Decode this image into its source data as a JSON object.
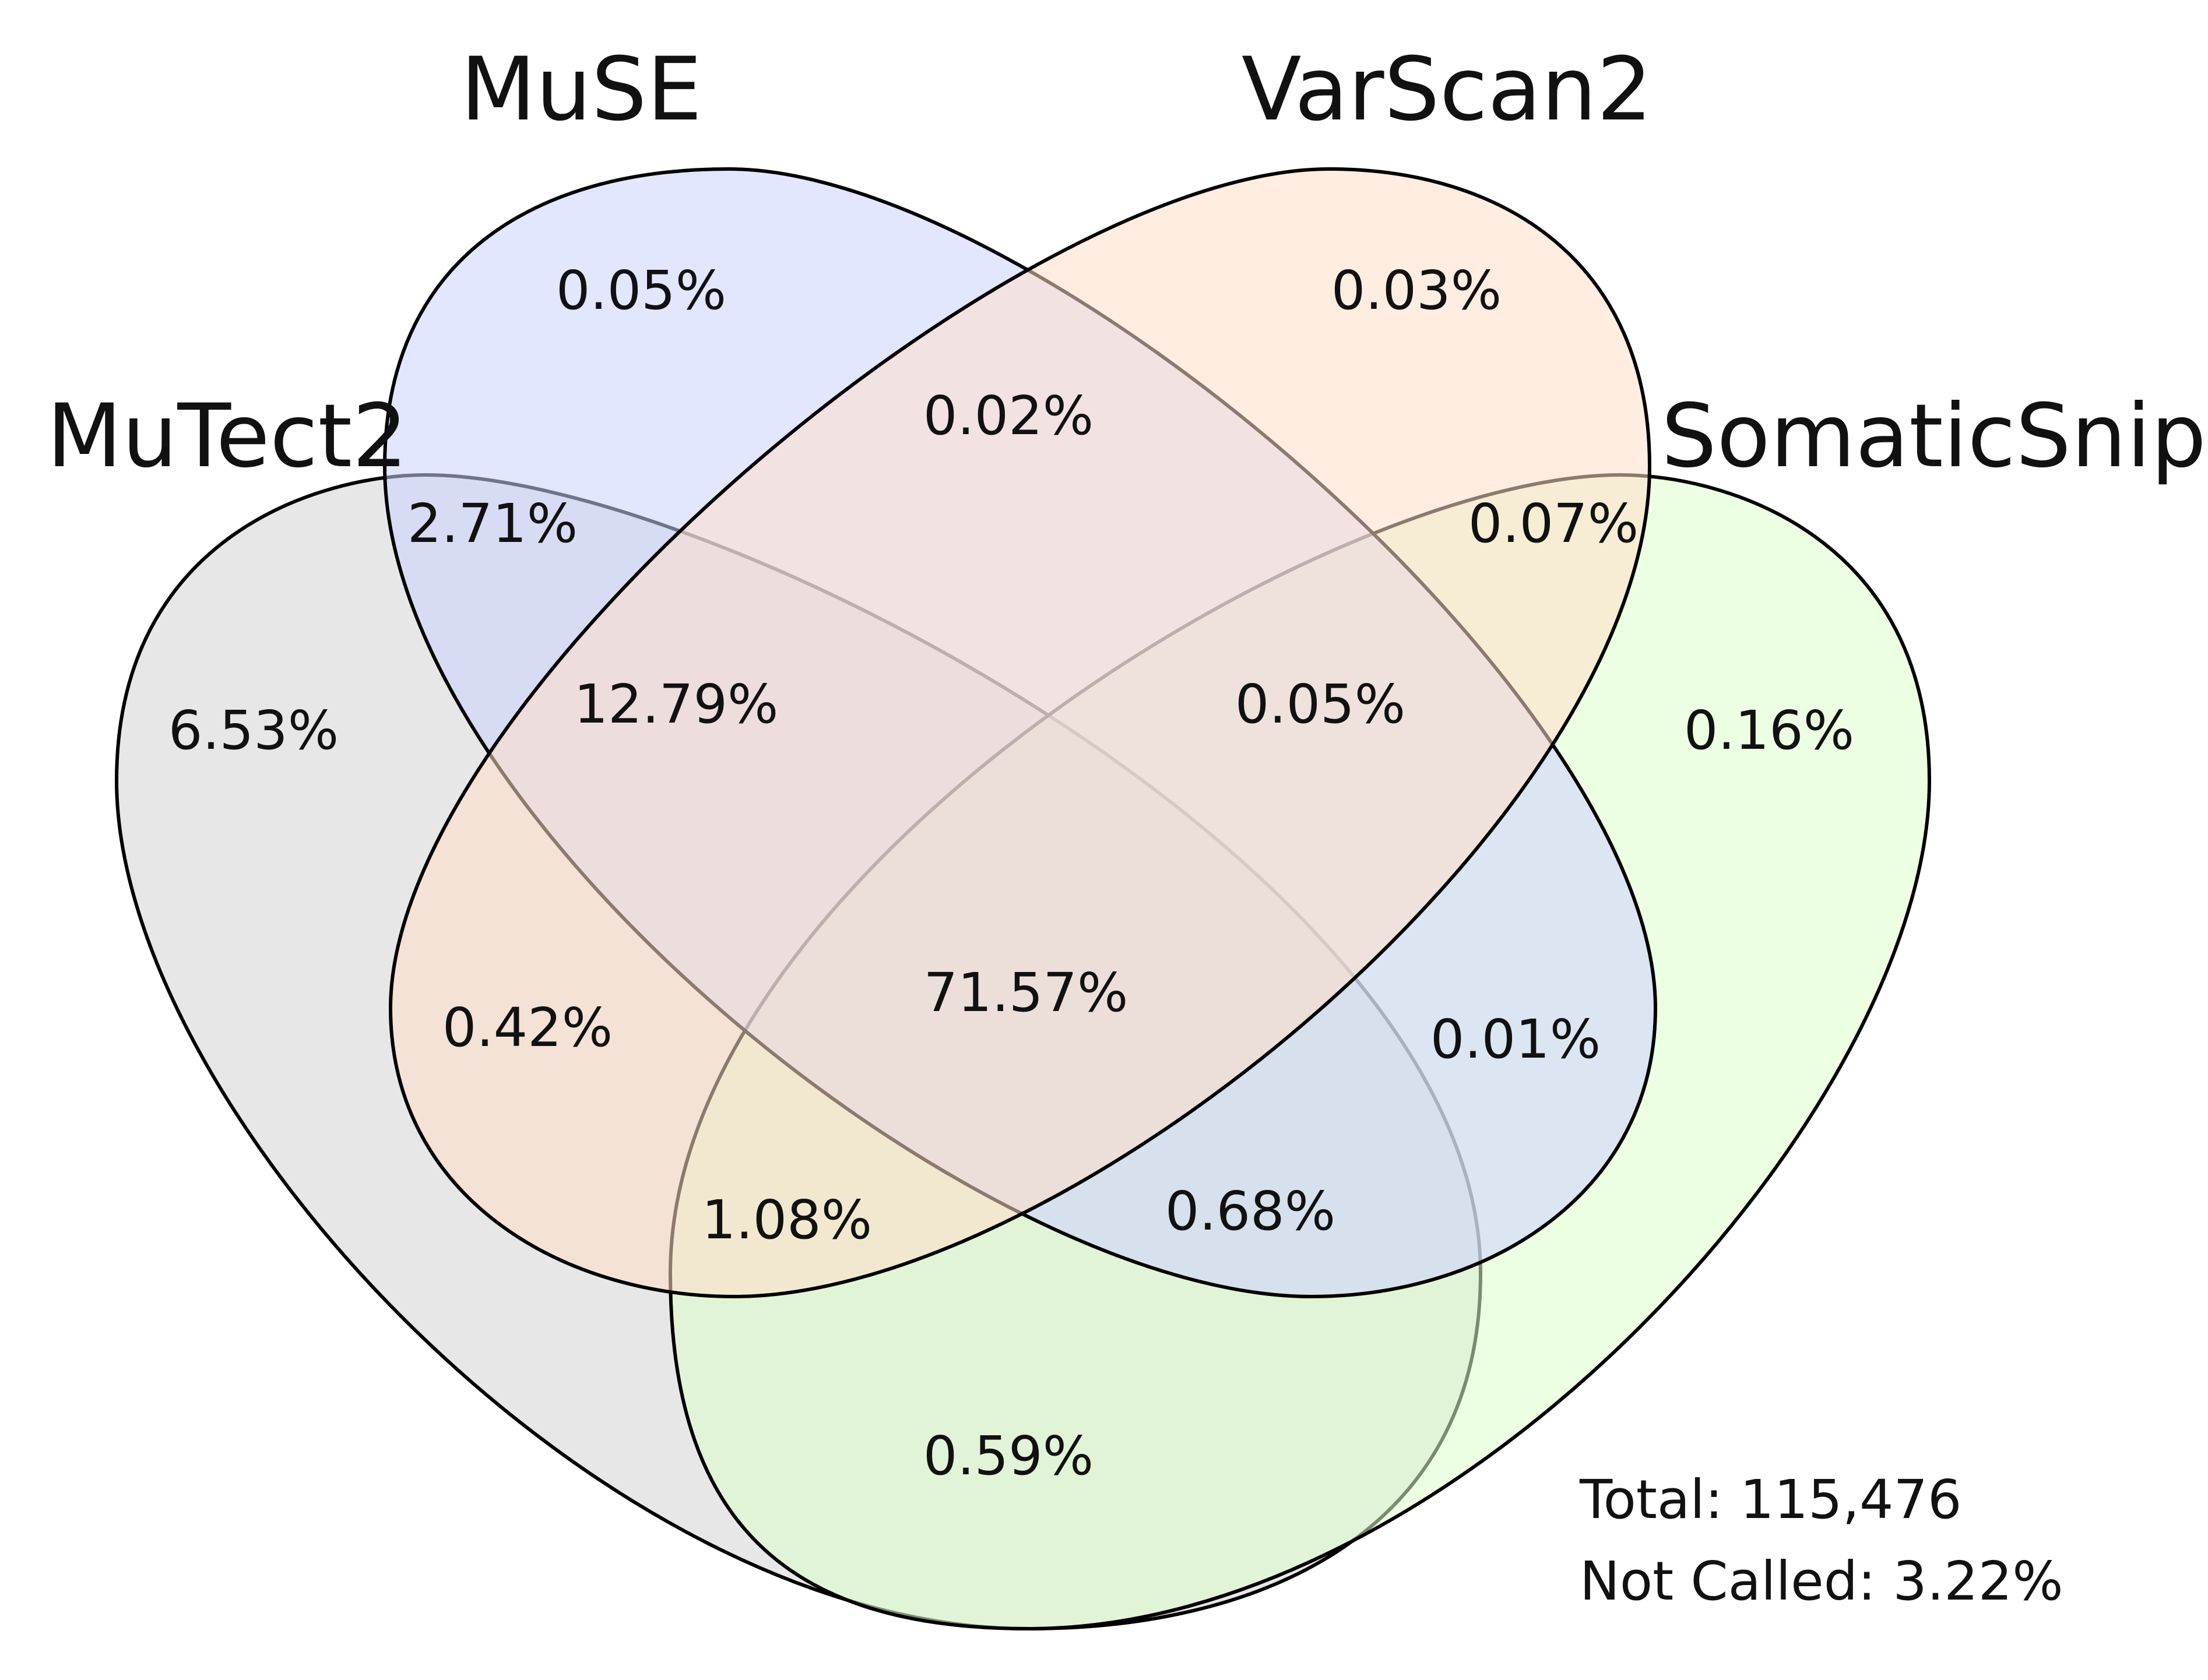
{
  "sets": [
    {
      "key": "mutect2",
      "name": "MuTect2",
      "color": "#d4d4d4"
    },
    {
      "key": "muse",
      "name": "MuSE",
      "color": "#ccd1ff"
    },
    {
      "key": "varscan2",
      "name": "VarScan2",
      "color": "#ffdfcb"
    },
    {
      "key": "somaticsniper",
      "name": "SomaticSniper",
      "color": "#dfffcb"
    }
  ],
  "regions": {
    "mutect2_only": "6.53%",
    "muse_only": "0.05%",
    "varscan2_only": "0.03%",
    "somaticsniper_only": "0.16%",
    "mutect2_muse": "2.71%",
    "muse_varscan2": "0.02%",
    "varscan2_somaticsniper": "0.07%",
    "mutect2_muse_varscan2": "12.79%",
    "muse_varscan2_somaticsniper": "0.05%",
    "mutect2_varscan2": "0.42%",
    "muse_somaticsniper": "0.01%",
    "all_four": "71.57%",
    "mutect2_varscan2_somaticsniper": "1.08%",
    "mutect2_muse_somaticsniper": "0.68%",
    "mutect2_somaticsniper": "0.59%"
  },
  "footer": {
    "total": "Total: 115,476",
    "not_called": "Not Called: 3.22%"
  }
}
